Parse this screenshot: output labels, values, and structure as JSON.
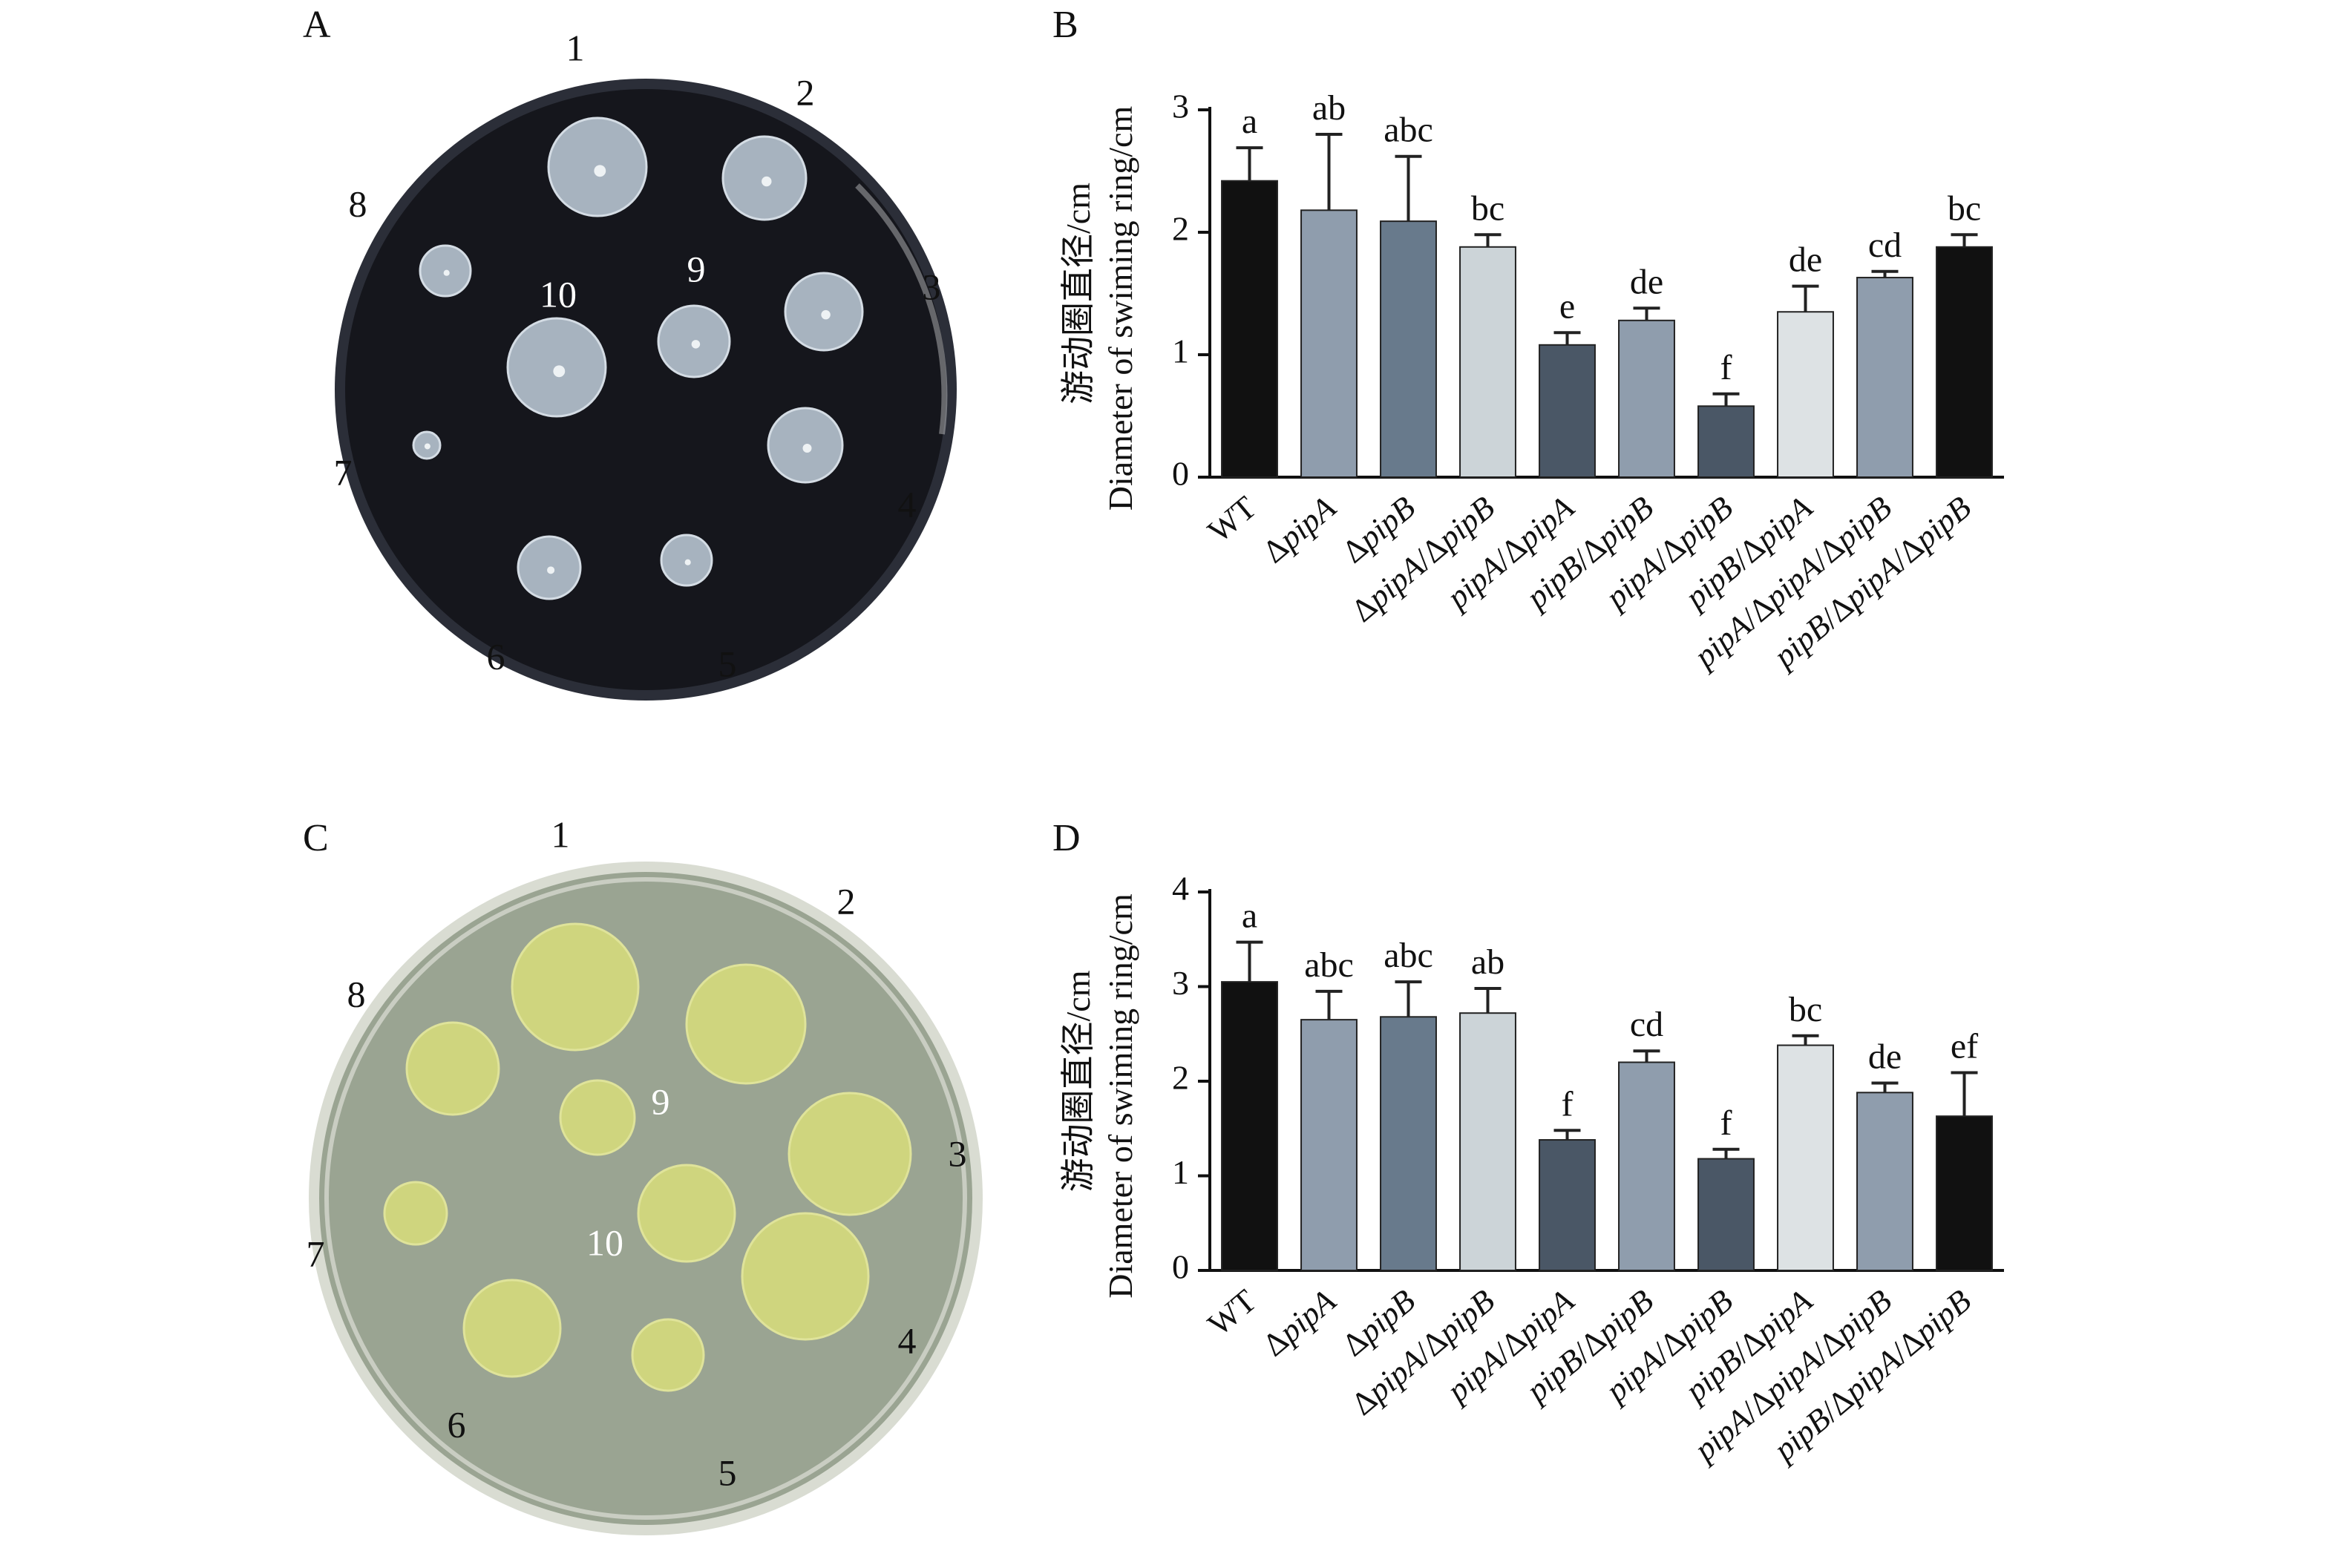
{
  "panels": {
    "A": {
      "letter": "A"
    },
    "B": {
      "letter": "B"
    },
    "C": {
      "letter": "C"
    },
    "D": {
      "letter": "D"
    }
  },
  "plates": [
    {
      "id": "plate-A",
      "style": "dark",
      "colors": {
        "agar": "#15161c",
        "rim": "#2b2e38",
        "colony": "#a7b3bf",
        "colony_edge": "#d4dce4"
      },
      "labels": [
        "1",
        "2",
        "3",
        "4",
        "5",
        "6",
        "7",
        "8",
        "9",
        "10"
      ]
    },
    {
      "id": "plate-C",
      "style": "light",
      "colors": {
        "agar": "#9aa492",
        "rim": "#d9dcd2",
        "colony": "#cfd57e",
        "colony_edge": "#dfe39a"
      },
      "labels": [
        "1",
        "2",
        "3",
        "4",
        "5",
        "6",
        "7",
        "8",
        "9",
        "10"
      ]
    }
  ],
  "chart_data": [
    {
      "type": "bar",
      "panel": "B",
      "ylabel_cn": "游动圈直径/cm",
      "ylabel_en": "Diameter of swiming ring/cm",
      "xlabel": "",
      "ylim": [
        0,
        3
      ],
      "yticks": [
        0,
        1,
        2,
        3
      ],
      "categories": [
        "WT",
        "ΔpipA",
        "ΔpipB",
        "ΔpipA/ΔpipB",
        "pipA/ΔpipA",
        "pipB/ΔpipB",
        "pipA/ΔpipB",
        "pipB/ΔpipA",
        "pipA/ΔpipA/ΔpipB",
        "pipB/ΔpipA/ΔpipB"
      ],
      "values": [
        2.42,
        2.18,
        2.09,
        1.88,
        1.08,
        1.28,
        0.58,
        1.35,
        1.63,
        1.88
      ],
      "errors": [
        0.27,
        0.62,
        0.53,
        0.1,
        0.1,
        0.1,
        0.1,
        0.21,
        0.05,
        0.1
      ],
      "significance": [
        "a",
        "ab",
        "abc",
        "bc",
        "e",
        "de",
        "f",
        "de",
        "cd",
        "bc"
      ],
      "bar_colors": [
        "#111111",
        "#8f9dad",
        "#687a8c",
        "#ccd4d8",
        "#4a5766",
        "#8f9dad",
        "#4a5766",
        "#dde2e4",
        "#8f9dad",
        "#111111"
      ]
    },
    {
      "type": "bar",
      "panel": "D",
      "ylabel_cn": "游动圈直径/cm",
      "ylabel_en": "Diameter of swiming ring/cm",
      "xlabel": "",
      "ylim": [
        0,
        4
      ],
      "yticks": [
        0,
        1,
        2,
        3,
        4
      ],
      "categories": [
        "WT",
        "ΔpipA",
        "ΔpipB",
        "ΔpipA/ΔpipB",
        "pipA/ΔpipA",
        "pipB/ΔpipB",
        "pipA/ΔpipB",
        "pipB/ΔpipA",
        "pipA/ΔpipA/ΔpipB",
        "pipB/ΔpipA/ΔpipB"
      ],
      "values": [
        3.05,
        2.65,
        2.68,
        2.72,
        1.38,
        2.2,
        1.18,
        2.38,
        1.88,
        1.63
      ],
      "errors": [
        0.42,
        0.3,
        0.37,
        0.26,
        0.1,
        0.12,
        0.1,
        0.1,
        0.1,
        0.46
      ],
      "significance": [
        "a",
        "abc",
        "abc",
        "ab",
        "f",
        "cd",
        "f",
        "bc",
        "de",
        "ef"
      ],
      "bar_colors": [
        "#111111",
        "#8f9dad",
        "#687a8c",
        "#ccd4d8",
        "#4a5766",
        "#8f9dad",
        "#4a5766",
        "#dde2e4",
        "#8f9dad",
        "#111111"
      ]
    }
  ]
}
